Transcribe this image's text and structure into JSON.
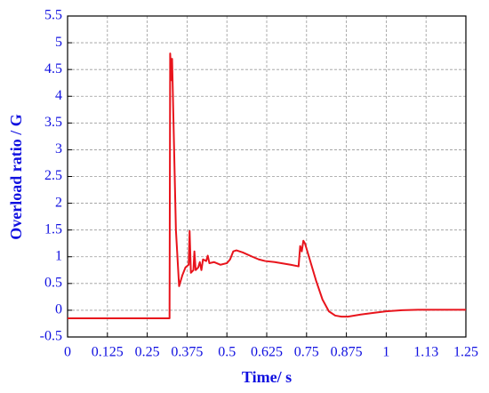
{
  "chart_data": {
    "type": "line",
    "xlabel": "Time/ s",
    "ylabel": "Overload ratio / G",
    "x": [
      0,
      0.32,
      0.322,
      0.326,
      0.328,
      0.34,
      0.35,
      0.36,
      0.37,
      0.38,
      0.383,
      0.387,
      0.395,
      0.398,
      0.402,
      0.41,
      0.415,
      0.42,
      0.425,
      0.435,
      0.44,
      0.445,
      0.46,
      0.48,
      0.5,
      0.51,
      0.52,
      0.53,
      0.55,
      0.58,
      0.6,
      0.62,
      0.65,
      0.7,
      0.725,
      0.73,
      0.735,
      0.74,
      0.745,
      0.76,
      0.78,
      0.8,
      0.82,
      0.84,
      0.86,
      0.88,
      0.92,
      0.96,
      1.0,
      1.05,
      1.1,
      1.25
    ],
    "series": [
      {
        "name": "Overload ratio",
        "color": "#e8141c",
        "values": [
          -0.15,
          -0.15,
          4.8,
          4.3,
          4.7,
          1.5,
          0.45,
          0.65,
          0.8,
          0.85,
          1.48,
          0.7,
          0.75,
          1.1,
          0.75,
          0.8,
          0.9,
          0.75,
          0.95,
          0.92,
          1.02,
          0.88,
          0.9,
          0.85,
          0.88,
          0.95,
          1.1,
          1.12,
          1.08,
          1.0,
          0.95,
          0.92,
          0.9,
          0.85,
          0.82,
          1.2,
          1.1,
          1.3,
          1.25,
          0.95,
          0.55,
          0.2,
          -0.02,
          -0.1,
          -0.12,
          -0.12,
          -0.08,
          -0.05,
          -0.02,
          0,
          0.01,
          0.01
        ]
      }
    ],
    "xlim": [
      0,
      1.25
    ],
    "xticks": [
      0,
      0.125,
      0.25,
      0.375,
      0.5,
      0.625,
      0.75,
      0.875,
      1,
      {
        "value": 1.125,
        "label": "1.13"
      },
      1.25
    ],
    "ylim": [
      -0.5,
      5.5
    ],
    "yticks": [
      -0.5,
      0,
      0.5,
      1,
      1.5,
      2,
      2.5,
      3,
      3.5,
      4,
      4.5,
      5,
      5.5
    ],
    "grid": true
  }
}
